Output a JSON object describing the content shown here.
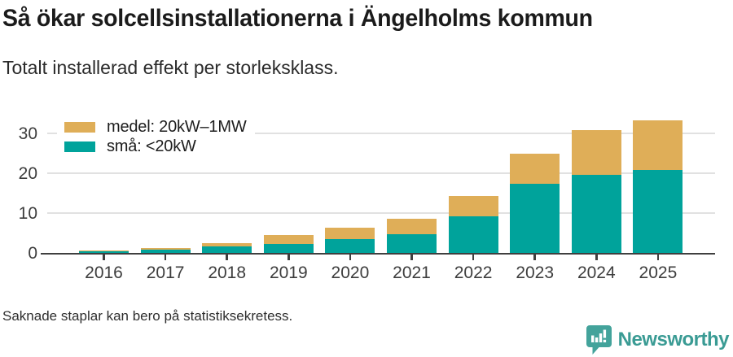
{
  "header": {
    "title": "Så ökar solcellsinstallationerna i Ängelholms kommun",
    "subtitle": "Totalt installerad effekt per storleksklass."
  },
  "legend": [
    {
      "label": "medel: 20kW–1MW",
      "color": "#dfae58"
    },
    {
      "label": "små: <20kW",
      "color": "#00a39b"
    }
  ],
  "chart_data": {
    "type": "bar",
    "stacked": true,
    "categories": [
      "2016",
      "2017",
      "2018",
      "2019",
      "2020",
      "2021",
      "2022",
      "2023",
      "2024",
      "2025"
    ],
    "series": [
      {
        "name": "små: <20kW",
        "color": "#00a39b",
        "values": [
          0.4,
          0.8,
          1.6,
          2.2,
          3.4,
          4.7,
          9.1,
          17.3,
          19.5,
          20.9
        ]
      },
      {
        "name": "medel: 20kW–1MW",
        "color": "#dfae58",
        "values": [
          0.3,
          0.5,
          0.8,
          2.3,
          3.0,
          3.9,
          5.2,
          7.5,
          11.4,
          12.4
        ]
      }
    ],
    "totals": [
      0.7,
      1.3,
      2.4,
      4.5,
      6.4,
      8.6,
      14.3,
      24.8,
      30.9,
      33.3
    ],
    "title": "Så ökar solcellsinstallationerna i Ängelholms kommun",
    "xlabel": "",
    "ylabel": "",
    "yticks": [
      0,
      10,
      20,
      30
    ],
    "ylim": [
      0,
      34
    ],
    "grid": "horizontal",
    "legend_position": "top-left"
  },
  "footer": {
    "note": "Saknade staplar kan bero på statistiksekretess."
  },
  "logo": {
    "text": "Newsworthy",
    "text_color": "#3a9b94",
    "icon_color": "#43a39b",
    "icon": "bar-chart-speech-bubble"
  },
  "colors": {
    "axis": "#3f3f3f",
    "gridline": "#e1e1e1",
    "tick_label": "#3d3d3d",
    "title_text": "#1b1b1b"
  }
}
